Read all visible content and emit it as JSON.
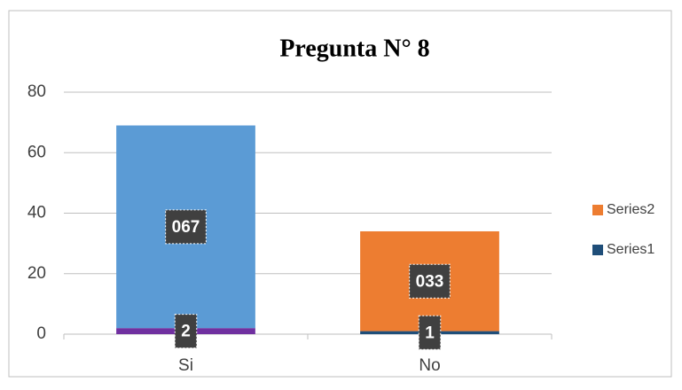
{
  "chart_data": {
    "type": "stacked_bar",
    "title": "Pregunta N° 8",
    "categories": [
      "Si",
      "No"
    ],
    "series": [
      {
        "name": "Series1",
        "color": "#1f4e79",
        "point_colors": [
          "#7030a0",
          "#1f4e79"
        ],
        "values": [
          2,
          1
        ]
      },
      {
        "name": "Series2",
        "color": "#ed7d31",
        "point_colors": [
          "#5b9bd5",
          "#ed7d31"
        ],
        "values": [
          67,
          33
        ],
        "value_labels": [
          "067",
          "033"
        ]
      }
    ],
    "ylim": [
      0,
      80
    ],
    "yticks": [
      0,
      20,
      40,
      60,
      80
    ],
    "grid": true,
    "legend": "right"
  }
}
